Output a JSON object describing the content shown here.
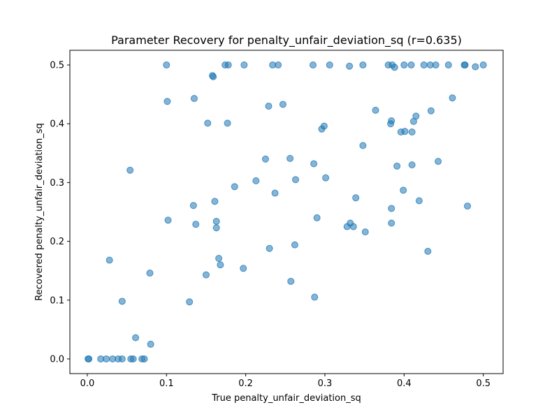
{
  "chart_data": {
    "type": "scatter",
    "title": "Parameter Recovery for penalty_unfair_deviation_sq (r=0.635)",
    "xlabel": "True penalty_unfair_deviation_sq",
    "ylabel": "Recovered penalty_unfair_deviation_sq",
    "xlim": [
      -0.022,
      0.525
    ],
    "ylim": [
      -0.025,
      0.525
    ],
    "xticks": [
      0.0,
      0.1,
      0.2,
      0.3,
      0.4,
      0.5
    ],
    "xtick_labels": [
      "0.0",
      "0.1",
      "0.2",
      "0.3",
      "0.4",
      "0.5"
    ],
    "yticks": [
      0.0,
      0.1,
      0.2,
      0.3,
      0.4,
      0.5
    ],
    "ytick_labels": [
      "0.0",
      "0.1",
      "0.2",
      "0.3",
      "0.4",
      "0.5"
    ],
    "grid": false,
    "marker_color": "#1f77b4",
    "marker_alpha": 0.55,
    "points": [
      [
        0.001,
        0.0
      ],
      [
        0.002,
        0.0
      ],
      [
        0.017,
        0.0
      ],
      [
        0.024,
        0.0
      ],
      [
        0.032,
        0.0
      ],
      [
        0.039,
        0.0
      ],
      [
        0.044,
        0.0
      ],
      [
        0.055,
        0.0
      ],
      [
        0.058,
        0.0
      ],
      [
        0.069,
        0.0
      ],
      [
        0.072,
        0.0
      ],
      [
        0.028,
        0.168
      ],
      [
        0.044,
        0.098
      ],
      [
        0.054,
        0.321
      ],
      [
        0.061,
        0.036
      ],
      [
        0.079,
        0.146
      ],
      [
        0.08,
        0.025
      ],
      [
        0.1,
        0.5
      ],
      [
        0.101,
        0.438
      ],
      [
        0.102,
        0.236
      ],
      [
        0.129,
        0.097
      ],
      [
        0.134,
        0.261
      ],
      [
        0.135,
        0.443
      ],
      [
        0.137,
        0.229
      ],
      [
        0.15,
        0.143
      ],
      [
        0.152,
        0.401
      ],
      [
        0.158,
        0.482
      ],
      [
        0.159,
        0.48
      ],
      [
        0.161,
        0.268
      ],
      [
        0.163,
        0.234
      ],
      [
        0.163,
        0.223
      ],
      [
        0.166,
        0.171
      ],
      [
        0.168,
        0.16
      ],
      [
        0.174,
        0.5
      ],
      [
        0.177,
        0.401
      ],
      [
        0.178,
        0.5
      ],
      [
        0.186,
        0.293
      ],
      [
        0.197,
        0.154
      ],
      [
        0.198,
        0.5
      ],
      [
        0.213,
        0.303
      ],
      [
        0.225,
        0.34
      ],
      [
        0.229,
        0.43
      ],
      [
        0.23,
        0.188
      ],
      [
        0.234,
        0.5
      ],
      [
        0.237,
        0.282
      ],
      [
        0.241,
        0.5
      ],
      [
        0.247,
        0.433
      ],
      [
        0.256,
        0.341
      ],
      [
        0.257,
        0.132
      ],
      [
        0.262,
        0.194
      ],
      [
        0.263,
        0.305
      ],
      [
        0.285,
        0.5
      ],
      [
        0.286,
        0.332
      ],
      [
        0.287,
        0.105
      ],
      [
        0.29,
        0.24
      ],
      [
        0.296,
        0.391
      ],
      [
        0.299,
        0.396
      ],
      [
        0.301,
        0.308
      ],
      [
        0.306,
        0.5
      ],
      [
        0.328,
        0.225
      ],
      [
        0.331,
        0.498
      ],
      [
        0.332,
        0.231
      ],
      [
        0.336,
        0.225
      ],
      [
        0.339,
        0.274
      ],
      [
        0.348,
        0.363
      ],
      [
        0.348,
        0.5
      ],
      [
        0.351,
        0.216
      ],
      [
        0.364,
        0.423
      ],
      [
        0.38,
        0.5
      ],
      [
        0.383,
        0.4
      ],
      [
        0.384,
        0.256
      ],
      [
        0.384,
        0.231
      ],
      [
        0.384,
        0.405
      ],
      [
        0.385,
        0.5
      ],
      [
        0.388,
        0.496
      ],
      [
        0.391,
        0.328
      ],
      [
        0.396,
        0.386
      ],
      [
        0.399,
        0.287
      ],
      [
        0.4,
        0.5
      ],
      [
        0.401,
        0.387
      ],
      [
        0.409,
        0.5
      ],
      [
        0.41,
        0.33
      ],
      [
        0.41,
        0.386
      ],
      [
        0.412,
        0.404
      ],
      [
        0.415,
        0.413
      ],
      [
        0.419,
        0.269
      ],
      [
        0.425,
        0.5
      ],
      [
        0.43,
        0.183
      ],
      [
        0.433,
        0.5
      ],
      [
        0.434,
        0.422
      ],
      [
        0.44,
        0.5
      ],
      [
        0.443,
        0.336
      ],
      [
        0.456,
        0.5
      ],
      [
        0.461,
        0.444
      ],
      [
        0.476,
        0.5
      ],
      [
        0.477,
        0.5
      ],
      [
        0.48,
        0.26
      ],
      [
        0.49,
        0.497
      ],
      [
        0.5,
        0.5
      ]
    ]
  }
}
